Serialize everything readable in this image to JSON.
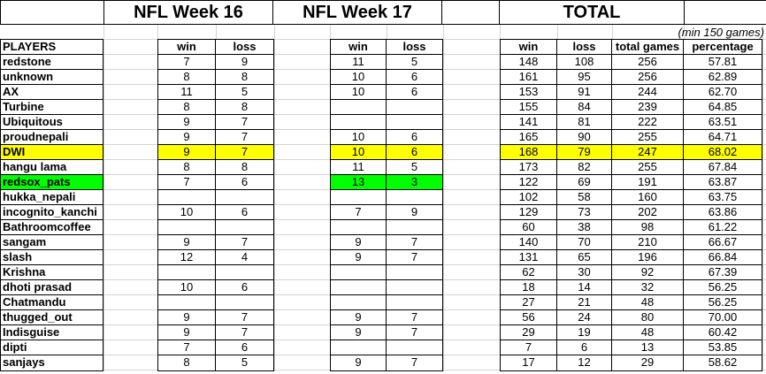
{
  "titles": {
    "week16": "NFL Week 16",
    "week17": "NFL Week 17",
    "total": "TOTAL"
  },
  "note": "(min 150 games)",
  "headers": {
    "players": "PLAYERS",
    "win": "win",
    "loss": "loss",
    "total_games": "total games",
    "percentage": "percentage"
  },
  "colors": {
    "highlight_yellow": "#ffff00",
    "highlight_green": "#00ff00",
    "gridline": "#d4d4d4",
    "border": "#000000",
    "background": "#ffffff"
  },
  "table": {
    "rows": [
      {
        "player": "redstone",
        "w16": [
          "7",
          "9"
        ],
        "w17": [
          "11",
          "5"
        ],
        "total": [
          "148",
          "108",
          "256",
          "57.81"
        ]
      },
      {
        "player": "unknown",
        "w16": [
          "8",
          "8"
        ],
        "w17": [
          "10",
          "6"
        ],
        "total": [
          "161",
          "95",
          "256",
          "62.89"
        ]
      },
      {
        "player": "AX",
        "w16": [
          "11",
          "5"
        ],
        "w17": [
          "10",
          "6"
        ],
        "total": [
          "153",
          "91",
          "244",
          "62.70"
        ]
      },
      {
        "player": "Turbine",
        "w16": [
          "8",
          "8"
        ],
        "w17": [
          "",
          ""
        ],
        "total": [
          "155",
          "84",
          "239",
          "64.85"
        ]
      },
      {
        "player": "Ubiquitous",
        "w16": [
          "9",
          "7"
        ],
        "w17": [
          "",
          ""
        ],
        "total": [
          "141",
          "81",
          "222",
          "63.51"
        ]
      },
      {
        "player": "proudnepali",
        "w16": [
          "9",
          "7"
        ],
        "w17": [
          "10",
          "6"
        ],
        "total": [
          "165",
          "90",
          "255",
          "64.71"
        ]
      },
      {
        "player": "DWI",
        "w16": [
          "9",
          "7"
        ],
        "w17": [
          "10",
          "6"
        ],
        "total": [
          "168",
          "79",
          "247",
          "68.02"
        ],
        "hl": {
          "player": "y",
          "w16": "y",
          "w17": "y",
          "total": "y"
        }
      },
      {
        "player": "hangu lama",
        "w16": [
          "8",
          "8"
        ],
        "w17": [
          "11",
          "5"
        ],
        "total": [
          "173",
          "82",
          "255",
          "67.84"
        ]
      },
      {
        "player": "redsox_pats",
        "w16": [
          "7",
          "6"
        ],
        "w17": [
          "13",
          "3"
        ],
        "total": [
          "122",
          "69",
          "191",
          "63.87"
        ],
        "hl": {
          "player": "g",
          "w17": "g"
        }
      },
      {
        "player": "hukka_nepali",
        "w16": [
          "",
          ""
        ],
        "w17": [
          "",
          ""
        ],
        "total": [
          "102",
          "58",
          "160",
          "63.75"
        ]
      },
      {
        "player": "incognito_kanchi",
        "w16": [
          "10",
          "6"
        ],
        "w17": [
          "7",
          "9"
        ],
        "total": [
          "129",
          "73",
          "202",
          "63.86"
        ]
      },
      {
        "player": "Bathroomcoffee",
        "w16": [
          "",
          ""
        ],
        "w17": [
          "",
          ""
        ],
        "total": [
          "60",
          "38",
          "98",
          "61.22"
        ]
      },
      {
        "player": "sangam",
        "w16": [
          "9",
          "7"
        ],
        "w17": [
          "9",
          "7"
        ],
        "total": [
          "140",
          "70",
          "210",
          "66.67"
        ]
      },
      {
        "player": "slash",
        "w16": [
          "12",
          "4"
        ],
        "w17": [
          "9",
          "7"
        ],
        "total": [
          "131",
          "65",
          "196",
          "66.84"
        ]
      },
      {
        "player": "Krishna",
        "w16": [
          "",
          ""
        ],
        "w17": [
          "",
          ""
        ],
        "total": [
          "62",
          "30",
          "92",
          "67.39"
        ]
      },
      {
        "player": "dhoti prasad",
        "w16": [
          "10",
          "6"
        ],
        "w17": [
          "",
          ""
        ],
        "total": [
          "18",
          "14",
          "32",
          "56.25"
        ]
      },
      {
        "player": "Chatmandu",
        "w16": [
          "",
          ""
        ],
        "w17": [
          "",
          ""
        ],
        "total": [
          "27",
          "21",
          "48",
          "56.25"
        ]
      },
      {
        "player": "thugged_out",
        "w16": [
          "9",
          "7"
        ],
        "w17": [
          "9",
          "7"
        ],
        "total": [
          "56",
          "24",
          "80",
          "70.00"
        ]
      },
      {
        "player": "Indisguise",
        "w16": [
          "9",
          "7"
        ],
        "w17": [
          "9",
          "7"
        ],
        "total": [
          "29",
          "19",
          "48",
          "60.42"
        ]
      },
      {
        "player": "dipti",
        "w16": [
          "7",
          "6"
        ],
        "w17": [
          "",
          ""
        ],
        "total": [
          "7",
          "6",
          "13",
          "53.85"
        ]
      },
      {
        "player": "sanjays",
        "w16": [
          "8",
          "5"
        ],
        "w17": [
          "9",
          "7"
        ],
        "total": [
          "17",
          "12",
          "29",
          "58.62"
        ]
      }
    ]
  }
}
